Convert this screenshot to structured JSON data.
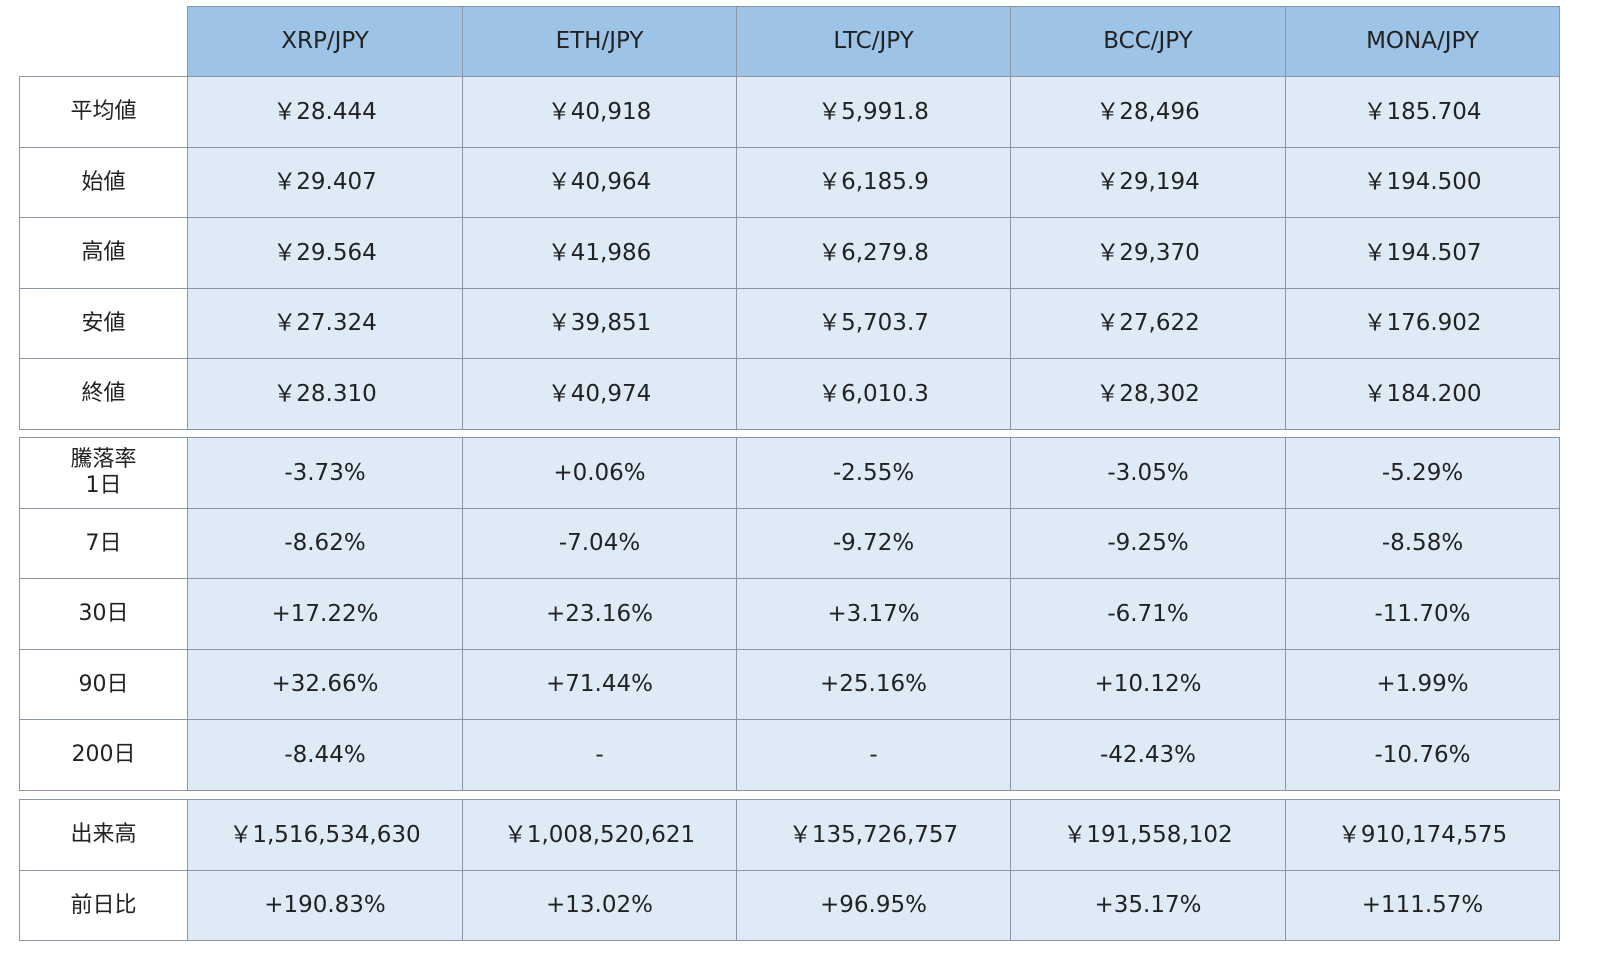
{
  "table": {
    "header": [
      "XRP/JPY",
      "ETH/JPY",
      "LTC/JPY",
      "BCC/JPY",
      "MONA/JPY"
    ],
    "groups": [
      {
        "rows": [
          {
            "label": "平均値",
            "cells": [
              "￥28.444",
              "￥40,918",
              "￥5,991.8",
              "￥28,496",
              "￥185.704"
            ]
          },
          {
            "label": "始値",
            "cells": [
              "￥29.407",
              "￥40,964",
              "￥6,185.9",
              "￥29,194",
              "￥194.500"
            ]
          },
          {
            "label": "高値",
            "cells": [
              "￥29.564",
              "￥41,986",
              "￥6,279.8",
              "￥29,370",
              "￥194.507"
            ]
          },
          {
            "label": "安値",
            "cells": [
              "￥27.324",
              "￥39,851",
              "￥5,703.7",
              "￥27,622",
              "￥176.902"
            ]
          },
          {
            "label": "終値",
            "cells": [
              "￥28.310",
              "￥40,974",
              "￥6,010.3",
              "￥28,302",
              "￥184.200"
            ]
          }
        ]
      },
      {
        "rows": [
          {
            "label": "騰落率\n1日",
            "cells": [
              "-3.73%",
              "+0.06%",
              "-2.55%",
              "-3.05%",
              "-5.29%"
            ]
          },
          {
            "label": "7日",
            "cells": [
              "-8.62%",
              "-7.04%",
              "-9.72%",
              "-9.25%",
              "-8.58%"
            ]
          },
          {
            "label": "30日",
            "cells": [
              "+17.22%",
              "+23.16%",
              "+3.17%",
              "-6.71%",
              "-11.70%"
            ]
          },
          {
            "label": "90日",
            "cells": [
              "+32.66%",
              "+71.44%",
              "+25.16%",
              "+10.12%",
              "+1.99%"
            ]
          },
          {
            "label": "200日",
            "cells": [
              "-8.44%",
              "-",
              "-",
              "-42.43%",
              "-10.76%"
            ]
          }
        ]
      },
      {
        "rows": [
          {
            "label": "出来高",
            "cells": [
              "￥1,516,534,630",
              "￥1,008,520,621",
              "￥135,726,757",
              "￥191,558,102",
              "￥910,174,575"
            ]
          },
          {
            "label": "前日比",
            "cells": [
              "+190.83%",
              "+13.02%",
              "+96.95%",
              "+35.17%",
              "+111.57%"
            ]
          }
        ]
      }
    ]
  }
}
